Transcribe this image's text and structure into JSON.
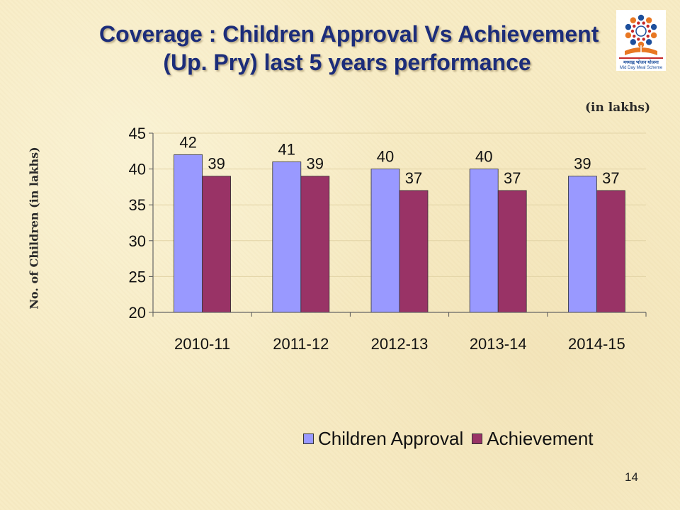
{
  "slide": {
    "title_line1": "Coverage : Children Approval Vs Achievement",
    "title_line2": "(Up. Pry) last 5 years performance",
    "units_note": "(in lakhs)",
    "page_number": "14",
    "logo": {
      "caption_hindi": "मध्याह्न भोजन योजना",
      "caption_english": "Mid Day Meal Scheme",
      "colors": [
        "#1d4f9c",
        "#e87722",
        "#c62828"
      ]
    }
  },
  "chart_data": {
    "type": "bar",
    "categories": [
      "2010-11",
      "2011-12",
      "2012-13",
      "2013-14",
      "2014-15"
    ],
    "series": [
      {
        "name": "Children Approval",
        "values": [
          42,
          41,
          40,
          40,
          39
        ],
        "color": "#9999ff"
      },
      {
        "name": "Achievement",
        "values": [
          39,
          39,
          37,
          37,
          37
        ],
        "color": "#993366"
      }
    ],
    "ylabel": "No. of Children (in lakhs)",
    "ylim": [
      20,
      45
    ],
    "yticks": [
      20,
      25,
      30,
      35,
      40,
      45
    ],
    "data_labels": true,
    "grid": true,
    "legend": "bottom"
  }
}
